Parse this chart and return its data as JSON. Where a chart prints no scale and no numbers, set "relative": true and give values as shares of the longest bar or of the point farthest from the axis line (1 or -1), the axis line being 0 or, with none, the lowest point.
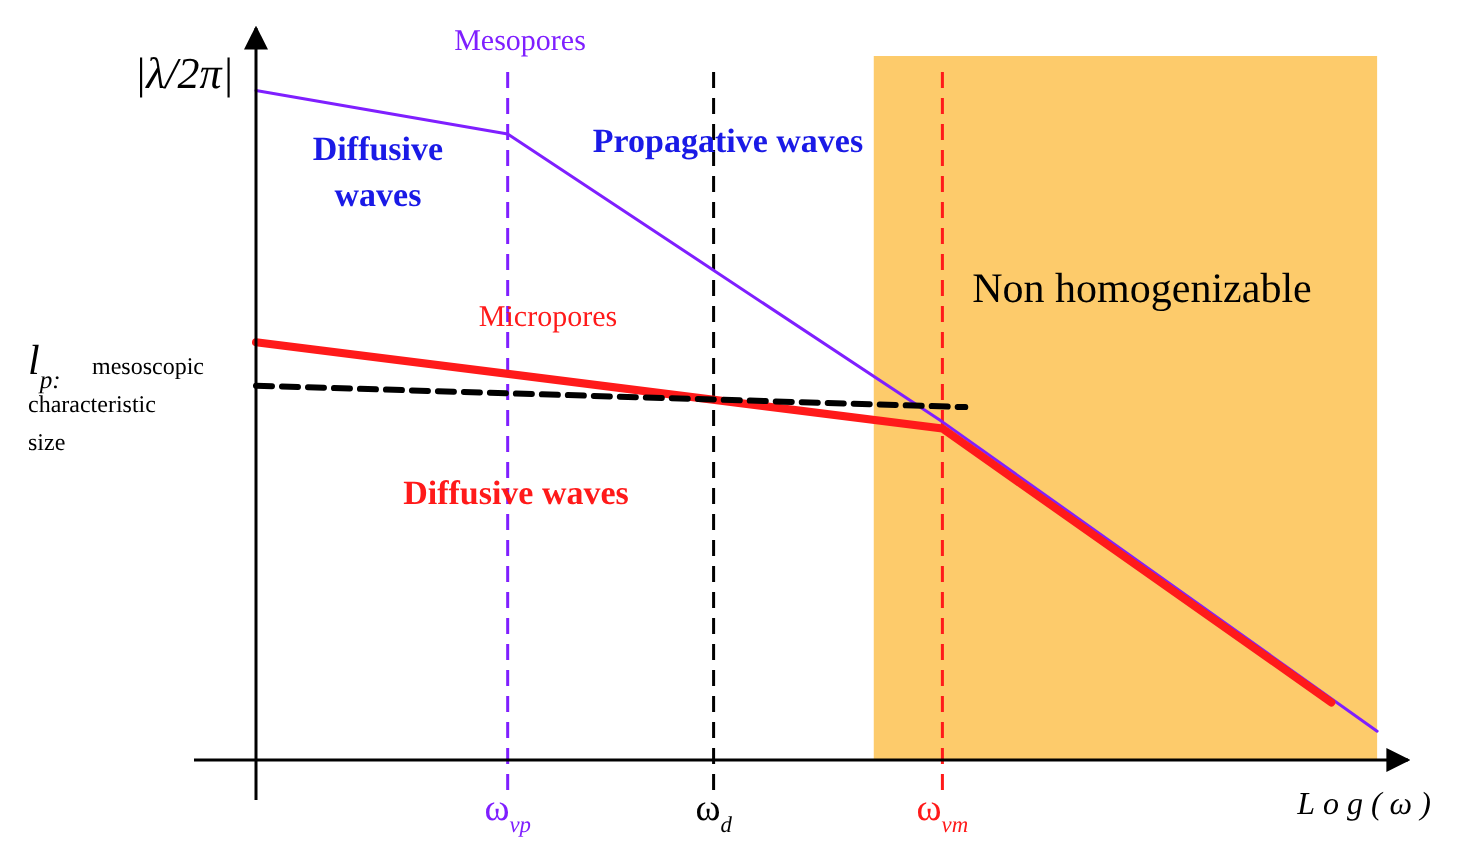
{
  "chart_data": {
    "type": "line",
    "relative": true,
    "ylabel": "|λ/2π|",
    "xlabel": "Log(ω)",
    "categories": [
      null,
      null,
      null,
      null,
      null,
      null,
      null,
      null,
      null,
      null,
      null,
      "ω$_{vp}$",
      null,
      null,
      null,
      null,
      null,
      null,
      null,
      null,
      "ω$_{d}$",
      null,
      null,
      null,
      null,
      null,
      null,
      null,
      null,
      null,
      "ω$_{vm}$",
      null,
      null,
      null,
      null,
      null,
      null,
      null,
      null,
      null,
      null,
      null,
      null,
      null,
      null,
      null,
      null,
      null,
      null,
      null,
      null
    ],
    "series": [
      {
        "color": "#7f1fff",
        "values": [
          1,
          null,
          null,
          null,
          null,
          null,
          null,
          null,
          null,
          null,
          null,
          0.935,
          null,
          null,
          null,
          null,
          null,
          null,
          null,
          null,
          null,
          null,
          null,
          null,
          null,
          null,
          null,
          null,
          null,
          null,
          0.505,
          null,
          null,
          null,
          null,
          null,
          null,
          null,
          null,
          null,
          null,
          null,
          null,
          null,
          null,
          null,
          null,
          null,
          null,
          0.043,
          null
        ]
      },
      {
        "color": "#ff1a1a",
        "values": [
          0.624,
          null,
          null,
          null,
          null,
          null,
          null,
          null,
          null,
          null,
          null,
          null,
          null,
          null,
          null,
          null,
          null,
          null,
          null,
          null,
          null,
          null,
          null,
          null,
          null,
          null,
          null,
          null,
          null,
          null,
          0.495,
          null,
          null,
          null,
          null,
          null,
          null,
          null,
          null,
          null,
          null,
          null,
          null,
          null,
          null,
          null,
          null,
          0.086,
          null,
          null,
          null
        ]
      },
      {
        "color": "#000000",
        "line_style": "dashed",
        "values": [
          0.559,
          null,
          null,
          null,
          null,
          null,
          null,
          null,
          null,
          null,
          null,
          null,
          null,
          null,
          null,
          null,
          null,
          null,
          null,
          null,
          null,
          null,
          null,
          null,
          null,
          null,
          null,
          null,
          null,
          null,
          null,
          0.527,
          null,
          null,
          null,
          null,
          null,
          null,
          null,
          null,
          null,
          null,
          null,
          null,
          null,
          null,
          null,
          null,
          null,
          null,
          null
        ]
      }
    ],
    "ref_lines": [
      {
        "axis": "x",
        "value": "ω$_{vp}$",
        "color": "#7f1fff",
        "line_style": "dashed"
      },
      {
        "axis": "x",
        "value": "ω$_{d}$",
        "color": "#000000",
        "line_style": "dashed"
      },
      {
        "axis": "x",
        "value": "ω$_{vm}$",
        "color": "#ff1a1a",
        "line_style": "dashed"
      }
    ],
    "annotations": [
      "Mesopores",
      "Diffusive waves",
      "Propagative waves",
      "Micropores",
      "Diffusive waves",
      "Non homogenizable",
      "l$_{p:}$ mesoscopic characteristic size"
    ]
  }
}
